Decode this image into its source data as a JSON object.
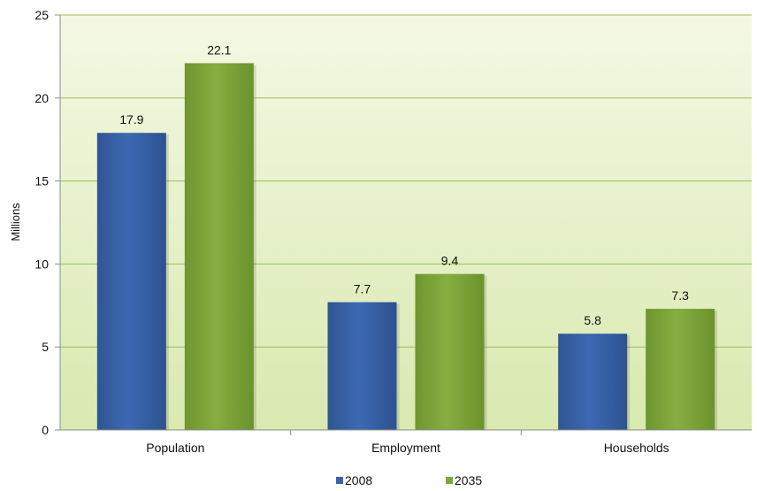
{
  "chart_data": {
    "type": "bar",
    "categories": [
      "Population",
      "Employment",
      "Households"
    ],
    "series": [
      {
        "name": "2008",
        "values": [
          17.9,
          7.7,
          5.8
        ],
        "color": "#3a62a6"
      },
      {
        "name": "2035",
        "values": [
          22.1,
          9.4,
          7.3
        ],
        "color": "#7ea63a"
      }
    ],
    "ylabel": "Millions",
    "xlabel": "",
    "title": "",
    "ylim": [
      0,
      25
    ],
    "yticks": [
      0,
      5,
      10,
      15,
      20,
      25
    ],
    "grid": true,
    "legend_position": "bottom",
    "plot_background": [
      "#f4f8e4",
      "#d9e9b0"
    ]
  }
}
